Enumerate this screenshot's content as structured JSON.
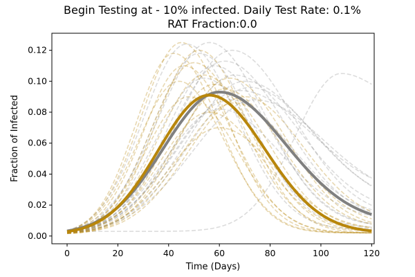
{
  "chart_data": {
    "type": "line",
    "title_line1": "Begin Testing at - 10% infected. Daily Test Rate: 0.1%",
    "title_line2": "RAT Fraction:0.0",
    "xlabel": "Time (Days)",
    "ylabel": "Fraction of Infected",
    "xlim": [
      -6,
      121
    ],
    "ylim": [
      -0.005,
      0.131
    ],
    "xticks": [
      0,
      20,
      40,
      60,
      80,
      100,
      120
    ],
    "xtick_labels": [
      "0",
      "20",
      "40",
      "60",
      "80",
      "100",
      "120"
    ],
    "yticks": [
      0.0,
      0.02,
      0.04,
      0.06,
      0.08,
      0.1,
      0.12
    ],
    "ytick_labels": [
      "0.00",
      "0.02",
      "0.04",
      "0.06",
      "0.08",
      "0.10",
      "0.12"
    ],
    "grid": false,
    "colors": {
      "gray": "#808080",
      "gold": "#b8860b"
    },
    "series": [
      {
        "color": "gray",
        "style": "solid",
        "peak_day": 60,
        "peak": 0.093,
        "sigma_left": 22,
        "sigma_right": 26,
        "start": 0.001,
        "end": 0.008
      },
      {
        "color": "gold",
        "style": "solid",
        "peak_day": 56,
        "peak": 0.091,
        "sigma_left": 20,
        "sigma_right": 22,
        "start": 0.001,
        "end": 0.002
      },
      {
        "color": "gray",
        "style": "dashed",
        "peak_day": 47,
        "peak": 0.124,
        "sigma_left": 17,
        "sigma_right": 20,
        "start": 0.001,
        "end": 0.004
      },
      {
        "color": "gray",
        "style": "dashed",
        "peak_day": 56,
        "peak": 0.125,
        "sigma_left": 20,
        "sigma_right": 22,
        "start": 0.001,
        "end": 0.006
      },
      {
        "color": "gray",
        "style": "dashed",
        "peak_day": 62,
        "peak": 0.113,
        "sigma_left": 21,
        "sigma_right": 24,
        "start": 0.001,
        "end": 0.01
      },
      {
        "color": "gray",
        "style": "dashed",
        "peak_day": 66,
        "peak": 0.104,
        "sigma_left": 22,
        "sigma_right": 25,
        "start": 0.001,
        "end": 0.015
      },
      {
        "color": "gray",
        "style": "dashed",
        "peak_day": 70,
        "peak": 0.1,
        "sigma_left": 23,
        "sigma_right": 26,
        "start": 0.001,
        "end": 0.02
      },
      {
        "color": "gray",
        "style": "dashed",
        "peak_day": 64,
        "peak": 0.088,
        "sigma_left": 22,
        "sigma_right": 24,
        "start": 0.001,
        "end": 0.012
      },
      {
        "color": "gray",
        "style": "dashed",
        "peak_day": 58,
        "peak": 0.11,
        "sigma_left": 19,
        "sigma_right": 22,
        "start": 0.001,
        "end": 0.006
      },
      {
        "color": "gray",
        "style": "dashed",
        "peak_day": 68,
        "peak": 0.094,
        "sigma_left": 24,
        "sigma_right": 28,
        "start": 0.001,
        "end": 0.025
      },
      {
        "color": "gray",
        "style": "dashed",
        "peak_day": 54,
        "peak": 0.102,
        "sigma_left": 19,
        "sigma_right": 21,
        "start": 0.001,
        "end": 0.005
      },
      {
        "color": "gray",
        "style": "dashed",
        "peak_day": 60,
        "peak": 0.082,
        "sigma_left": 21,
        "sigma_right": 24,
        "start": 0.001,
        "end": 0.01
      },
      {
        "color": "gray",
        "style": "dashed",
        "peak_day": 72,
        "peak": 0.096,
        "sigma_left": 24,
        "sigma_right": 26,
        "start": 0.001,
        "end": 0.018
      },
      {
        "color": "gray",
        "style": "dashed",
        "peak_day": 52,
        "peak": 0.118,
        "sigma_left": 18,
        "sigma_right": 21,
        "start": 0.001,
        "end": 0.004
      },
      {
        "color": "gray",
        "style": "dashed",
        "peak_day": 65,
        "peak": 0.12,
        "sigma_left": 22,
        "sigma_right": 24,
        "start": 0.001,
        "end": 0.012
      },
      {
        "color": "gray",
        "style": "dashed",
        "peak_day": 74,
        "peak": 0.088,
        "sigma_left": 25,
        "sigma_right": 27,
        "start": 0.001,
        "end": 0.022
      },
      {
        "color": "gray",
        "style": "dashed",
        "peak_day": 108,
        "peak": 0.105,
        "sigma_left": 18,
        "sigma_right": 13,
        "start": 0.003,
        "end": 0.085
      },
      {
        "color": "gold",
        "style": "dashed",
        "peak_day": 42,
        "peak": 0.118,
        "sigma_left": 15,
        "sigma_right": 18,
        "start": 0.001,
        "end": 0.002
      },
      {
        "color": "gold",
        "style": "dashed",
        "peak_day": 45,
        "peak": 0.125,
        "sigma_left": 16,
        "sigma_right": 18,
        "start": 0.001,
        "end": 0.002
      },
      {
        "color": "gold",
        "style": "dashed",
        "peak_day": 50,
        "peak": 0.112,
        "sigma_left": 17,
        "sigma_right": 20,
        "start": 0.001,
        "end": 0.003
      },
      {
        "color": "gold",
        "style": "dashed",
        "peak_day": 54,
        "peak": 0.104,
        "sigma_left": 18,
        "sigma_right": 20,
        "start": 0.001,
        "end": 0.003
      },
      {
        "color": "gold",
        "style": "dashed",
        "peak_day": 58,
        "peak": 0.098,
        "sigma_left": 19,
        "sigma_right": 21,
        "start": 0.001,
        "end": 0.004
      },
      {
        "color": "gold",
        "style": "dashed",
        "peak_day": 48,
        "peak": 0.09,
        "sigma_left": 17,
        "sigma_right": 19,
        "start": 0.001,
        "end": 0.002
      },
      {
        "color": "gold",
        "style": "dashed",
        "peak_day": 62,
        "peak": 0.095,
        "sigma_left": 20,
        "sigma_right": 22,
        "start": 0.001,
        "end": 0.005
      },
      {
        "color": "gold",
        "style": "dashed",
        "peak_day": 46,
        "peak": 0.11,
        "sigma_left": 16,
        "sigma_right": 19,
        "start": 0.001,
        "end": 0.002
      },
      {
        "color": "gold",
        "style": "dashed",
        "peak_day": 66,
        "peak": 0.086,
        "sigma_left": 21,
        "sigma_right": 23,
        "start": 0.001,
        "end": 0.006
      },
      {
        "color": "gold",
        "style": "dashed",
        "peak_day": 56,
        "peak": 0.08,
        "sigma_left": 19,
        "sigma_right": 21,
        "start": 0.001,
        "end": 0.003
      },
      {
        "color": "gold",
        "style": "dashed",
        "peak_day": 52,
        "peak": 0.12,
        "sigma_left": 17,
        "sigma_right": 19,
        "start": 0.001,
        "end": 0.002
      },
      {
        "color": "gold",
        "style": "dashed",
        "peak_day": 70,
        "peak": 0.09,
        "sigma_left": 22,
        "sigma_right": 23,
        "start": 0.001,
        "end": 0.008
      },
      {
        "color": "gold",
        "style": "dashed",
        "peak_day": 60,
        "peak": 0.07,
        "sigma_left": 20,
        "sigma_right": 22,
        "start": 0.001,
        "end": 0.004
      },
      {
        "color": "gold",
        "style": "dashed",
        "peak_day": 44,
        "peak": 0.1,
        "sigma_left": 16,
        "sigma_right": 18,
        "start": 0.001,
        "end": 0.002
      },
      {
        "color": "gold",
        "style": "dashed",
        "peak_day": 64,
        "peak": 0.102,
        "sigma_left": 20,
        "sigma_right": 22,
        "start": 0.001,
        "end": 0.005
      }
    ]
  }
}
